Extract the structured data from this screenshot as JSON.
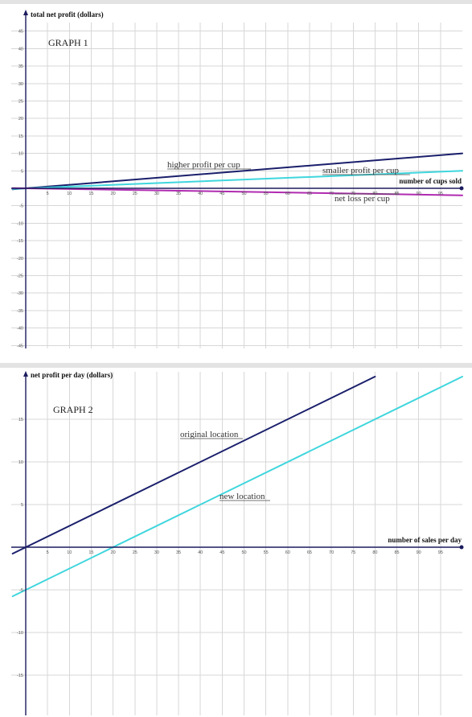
{
  "colors": {
    "navy": "#1a1f6b",
    "cyan": "#3fd6dd",
    "magenta": "#b02bb0",
    "axis": "#1b1b5e",
    "grid": "#d7d7d7"
  },
  "chart_data": [
    {
      "type": "line",
      "title": "GRAPH 1",
      "xlabel": "number of cups sold",
      "ylabel": "total net profit (dollars)",
      "xlim": [
        0,
        100
      ],
      "ylim": [
        -45,
        45
      ],
      "x_ticks": [
        5,
        10,
        15,
        20,
        25,
        30,
        35,
        40,
        45,
        50,
        55,
        60,
        65,
        70,
        75,
        80,
        85,
        90,
        95
      ],
      "y_ticks": [
        45,
        40,
        35,
        30,
        25,
        20,
        15,
        10,
        5,
        -5,
        -10,
        -15,
        -20,
        -25,
        -30,
        -35,
        -40,
        -45
      ],
      "grid": true,
      "series": [
        {
          "name": "higher profit per cup",
          "color": "#1a1f6b",
          "x": [
            -3,
            100
          ],
          "y": [
            -0.3,
            10
          ]
        },
        {
          "name": "smaller profit per cup",
          "color": "#3fd6dd",
          "x": [
            -3,
            100
          ],
          "y": [
            -0.15,
            5
          ]
        },
        {
          "name": "net loss per cup",
          "color": "#b02bb0",
          "x": [
            -3,
            100
          ],
          "y": [
            0.06,
            -2
          ]
        }
      ]
    },
    {
      "type": "line",
      "title": "GRAPH 2",
      "xlabel": "number of sales per day",
      "ylabel": "net profit per day (dollars)",
      "xlim": [
        0,
        100
      ],
      "ylim": [
        -19,
        20
      ],
      "x_ticks": [
        5,
        10,
        15,
        20,
        25,
        30,
        35,
        40,
        45,
        50,
        55,
        60,
        65,
        70,
        75,
        80,
        85,
        90,
        95
      ],
      "y_ticks": [
        15,
        10,
        5,
        -5,
        -10,
        -15
      ],
      "grid": true,
      "series": [
        {
          "name": "original location",
          "color": "#1a1f6b",
          "x": [
            -3,
            80
          ],
          "y": [
            -0.75,
            20
          ]
        },
        {
          "name": "new location",
          "color": "#3fd6dd",
          "x": [
            -3,
            100
          ],
          "y": [
            -5.75,
            20
          ]
        }
      ]
    }
  ]
}
